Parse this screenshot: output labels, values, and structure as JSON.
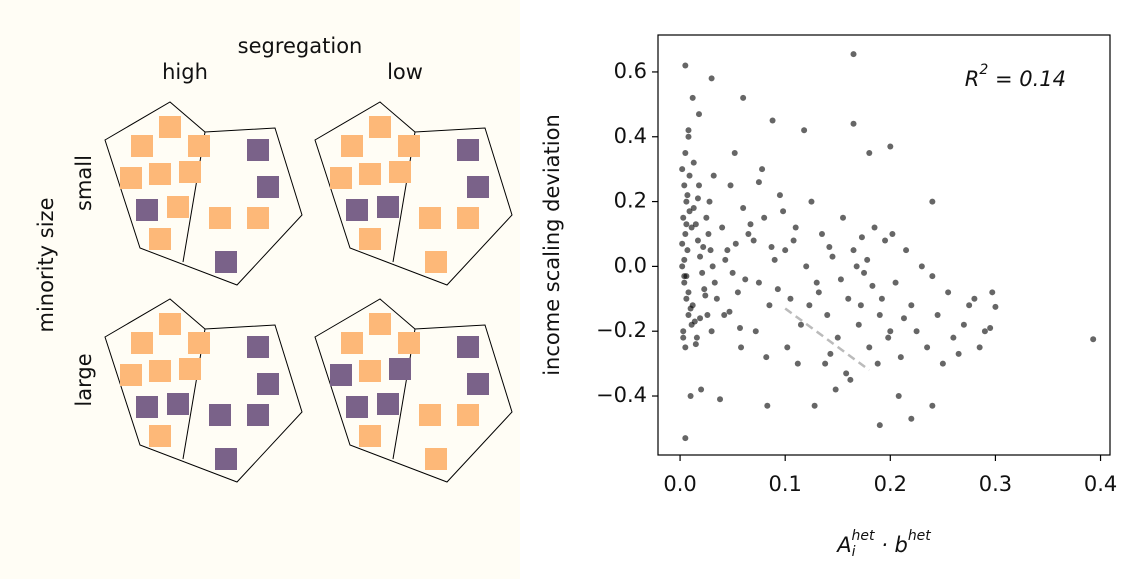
{
  "diagram": {
    "title": "segregation",
    "columns": [
      "high",
      "low"
    ],
    "row_title": "minority size",
    "rows": [
      "small",
      "large"
    ]
  },
  "chart_data": {
    "type": "scatter",
    "ylabel": "income scaling deviation",
    "xlabel": {
      "parts": [
        {
          "text": "A",
          "style": "base"
        },
        {
          "text": "i",
          "style": "sub"
        },
        {
          "text": "het",
          "style": "sup"
        },
        {
          "text": " · b",
          "style": "base"
        },
        {
          "text": "het",
          "style": "sup"
        }
      ]
    },
    "annotation": {
      "parts": [
        {
          "text": "R",
          "style": "base"
        },
        {
          "text": "2",
          "style": "sup"
        },
        {
          "text": " = 0.14",
          "style": "base"
        }
      ]
    },
    "xlim": [
      -0.021,
      0.409
    ],
    "ylim": [
      -0.582,
      0.714
    ],
    "xticks": [
      {
        "value": 0,
        "label": "0.0"
      },
      0.1,
      0.2,
      0.3,
      0.4
    ],
    "yticks": [
      {
        "value": -0.4,
        "label": "−0.4"
      },
      {
        "value": -0.2,
        "label": "−0.2"
      },
      {
        "value": 0,
        "label": "0.0"
      },
      0.2,
      0.4,
      0.6
    ],
    "color": "#000000",
    "fit_line": {
      "color": "#bbbbbb",
      "x": [
        0.1,
        0.18
      ],
      "y": [
        -0.13,
        -0.32
      ]
    },
    "x": [
      0.005,
      0.165,
      0.393,
      0.005,
      0.165,
      0.03,
      0.06,
      0.18,
      0.2,
      0.24,
      0.24,
      0.19,
      0.22,
      0.297,
      0.295,
      0.3,
      0.012,
      0.018,
      0.008,
      0.075,
      0.002,
      0.004,
      0.006,
      0.003,
      0.005,
      0.007,
      0.002,
      0.004,
      0.006,
      0.008,
      0.003,
      0.005,
      0.007,
      0.009,
      0.011,
      0.002,
      0.004,
      0.006,
      0.008,
      0.01,
      0.013,
      0.015,
      0.017,
      0.019,
      0.021,
      0.023,
      0.012,
      0.014,
      0.016,
      0.018,
      0.025,
      0.027,
      0.029,
      0.031,
      0.033,
      0.035,
      0.026,
      0.028,
      0.03,
      0.032,
      0.04,
      0.045,
      0.05,
      0.055,
      0.06,
      0.065,
      0.042,
      0.048,
      0.052,
      0.058,
      0.07,
      0.075,
      0.08,
      0.085,
      0.09,
      0.095,
      0.072,
      0.078,
      0.082,
      0.088,
      0.1,
      0.105,
      0.11,
      0.115,
      0.12,
      0.125,
      0.102,
      0.108,
      0.112,
      0.118,
      0.13,
      0.135,
      0.14,
      0.145,
      0.15,
      0.155,
      0.132,
      0.138,
      0.142,
      0.148,
      0.16,
      0.165,
      0.17,
      0.175,
      0.18,
      0.185,
      0.162,
      0.168,
      0.172,
      0.178,
      0.19,
      0.195,
      0.2,
      0.205,
      0.21,
      0.215,
      0.192,
      0.198,
      0.202,
      0.208,
      0.22,
      0.225,
      0.23,
      0.235,
      0.24,
      0.245,
      0.25,
      0.26,
      0.27,
      0.28,
      0.265,
      0.275,
      0.285,
      0.29,
      0.255,
      0.01,
      0.02,
      0.015,
      0.005,
      0.008,
      0.003,
      0.009,
      0.011,
      0.013,
      0.006,
      0.004,
      0.022,
      0.024,
      0.017,
      0.019,
      0.038,
      0.043,
      0.047,
      0.053,
      0.057,
      0.062,
      0.067,
      0.083,
      0.087,
      0.093,
      0.098,
      0.123,
      0.128,
      0.143,
      0.153,
      0.158,
      0.173,
      0.183,
      0.188,
      0.213
    ],
    "y": [
      0.62,
      0.655,
      -0.225,
      -0.53,
      0.44,
      0.58,
      0.52,
      0.35,
      0.37,
      0.2,
      -0.43,
      -0.49,
      -0.47,
      -0.08,
      -0.19,
      -0.125,
      0.52,
      0.47,
      0.42,
      0.26,
      0.3,
      0.25,
      0.2,
      0.15,
      0.1,
      0.05,
      0.0,
      -0.05,
      -0.1,
      -0.15,
      -0.2,
      -0.25,
      0.22,
      0.17,
      0.12,
      0.07,
      0.02,
      -0.03,
      -0.08,
      -0.13,
      0.18,
      0.13,
      0.08,
      0.03,
      -0.02,
      -0.07,
      -0.12,
      -0.17,
      -0.22,
      0.25,
      0.15,
      0.1,
      0.05,
      0.0,
      -0.05,
      -0.1,
      -0.15,
      0.2,
      -0.2,
      0.28,
      0.12,
      0.05,
      -0.02,
      -0.08,
      0.18,
      0.1,
      -0.15,
      0.25,
      0.35,
      -0.25,
      0.08,
      -0.05,
      0.15,
      -0.12,
      0.02,
      0.22,
      -0.2,
      0.3,
      -0.28,
      0.45,
      0.05,
      -0.1,
      0.12,
      -0.18,
      0.0,
      0.2,
      -0.25,
      0.08,
      -0.3,
      0.42,
      -0.05,
      0.1,
      -0.15,
      0.03,
      -0.22,
      0.15,
      -0.08,
      -0.3,
      0.06,
      -0.38,
      -0.1,
      0.05,
      -0.18,
      -0.02,
      -0.25,
      0.12,
      -0.35,
      0.0,
      -0.12,
      0.02,
      -0.15,
      0.08,
      -0.2,
      -0.05,
      -0.28,
      0.05,
      -0.1,
      -0.22,
      0.1,
      -0.4,
      -0.12,
      -0.2,
      0.0,
      -0.25,
      -0.03,
      -0.15,
      -0.3,
      -0.22,
      -0.18,
      -0.1,
      -0.27,
      -0.12,
      -0.25,
      -0.2,
      -0.08,
      -0.4,
      -0.38,
      -0.24,
      0.35,
      0.4,
      -0.22,
      0.28,
      -0.18,
      0.32,
      0.13,
      -0.03,
      0.06,
      -0.09,
      0.21,
      -0.16,
      -0.41,
      0.02,
      -0.14,
      0.07,
      -0.19,
      -0.04,
      0.13,
      -0.43,
      0.06,
      -0.07,
      0.17,
      -0.12,
      -0.43,
      -0.27,
      -0.04,
      -0.33,
      0.09,
      -0.06,
      -0.3,
      -0.16
    ]
  }
}
